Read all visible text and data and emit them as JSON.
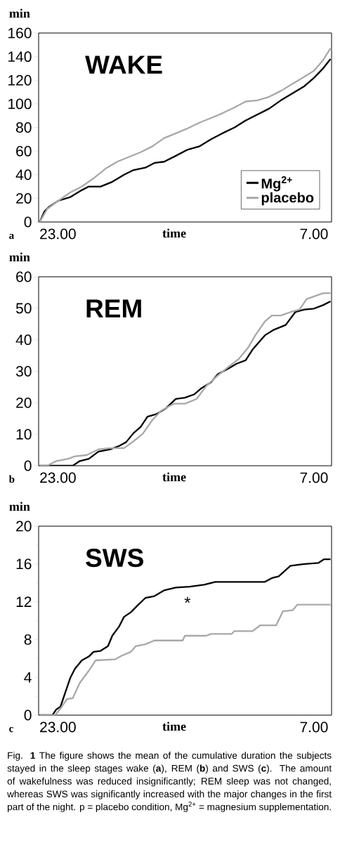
{
  "chart_data": [
    {
      "type": "line",
      "title": "WAKE",
      "xlabel": "time",
      "ylabel": "min",
      "xlim": [
        "2000-01-01T22:24",
        "2000-01-02T07:33"
      ],
      "xticks": [
        {
          "value": "2000-01-01T23:00",
          "label": "23.00"
        },
        {
          "value": "2000-01-02T07:00",
          "label": "7.00"
        }
      ],
      "ylim": [
        0,
        160
      ],
      "yticks": [
        0,
        20,
        40,
        60,
        80,
        100,
        120,
        140,
        160
      ],
      "legend": "bottom right",
      "grid": false,
      "annotations": [
        "a"
      ],
      "series": [
        {
          "name": "Mg$^{2+}$",
          "color": "#000000",
          "x": [
            "2000-01-01T22:26",
            "2000-01-01T22:35",
            "2000-01-01T22:44",
            "2000-01-01T23:01",
            "2000-01-01T23:23",
            "2000-01-01T23:45",
            "2000-01-01T23:58",
            "2000-01-02T00:20",
            "2000-01-02T00:42",
            "2000-01-02T01:04",
            "2000-01-02T01:22",
            "2000-01-02T01:44",
            "2000-01-02T02:01",
            "2000-01-02T02:19",
            "2000-01-02T02:41",
            "2000-01-02T03:02",
            "2000-01-02T03:25",
            "2000-01-02T03:47",
            "2000-01-02T04:08",
            "2000-01-02T04:31",
            "2000-01-02T04:52",
            "2000-01-02T05:14",
            "2000-01-02T05:36",
            "2000-01-02T05:58",
            "2000-01-02T06:20",
            "2000-01-02T06:42",
            "2000-01-02T07:00",
            "2000-01-02T07:17",
            "2000-01-02T07:31"
          ],
          "values": [
            0,
            9,
            13,
            18,
            21,
            27,
            30,
            30,
            34,
            40,
            44,
            46,
            50,
            51,
            56,
            61,
            64,
            70,
            75,
            80,
            86,
            91,
            96,
            103,
            109,
            115,
            122,
            130,
            138
          ]
        },
        {
          "name": "placebo",
          "color": "#a8a8a8",
          "x": [
            "2000-01-01T22:26",
            "2000-01-01T22:40",
            "2000-01-01T23:01",
            "2000-01-01T23:23",
            "2000-01-01T23:45",
            "2000-01-02T00:07",
            "2000-01-02T00:29",
            "2000-01-02T00:51",
            "2000-01-02T01:13",
            "2000-01-02T01:35",
            "2000-01-02T01:57",
            "2000-01-02T02:19",
            "2000-01-02T02:41",
            "2000-01-02T03:02",
            "2000-01-02T03:25",
            "2000-01-02T03:47",
            "2000-01-02T04:08",
            "2000-01-02T04:31",
            "2000-01-02T04:52",
            "2000-01-02T05:14",
            "2000-01-02T05:36",
            "2000-01-02T05:58",
            "2000-01-02T06:20",
            "2000-01-02T06:42",
            "2000-01-02T07:00",
            "2000-01-02T07:17",
            "2000-01-02T07:31"
          ],
          "values": [
            0,
            11,
            18,
            25,
            30,
            37,
            45,
            51,
            55,
            59,
            64,
            71,
            75,
            79,
            84,
            88,
            92,
            97,
            102,
            103,
            106,
            111,
            117,
            123,
            128,
            137,
            147
          ]
        }
      ]
    },
    {
      "type": "line",
      "title": "REM",
      "xlabel": "time",
      "ylabel": "min",
      "xlim": [
        "2000-01-01T22:24",
        "2000-01-02T07:33"
      ],
      "xticks": [
        {
          "value": "2000-01-01T23:00",
          "label": "23.00"
        },
        {
          "value": "2000-01-02T07:00",
          "label": "7.00"
        }
      ],
      "ylim": [
        0,
        60
      ],
      "yticks": [
        0,
        10,
        20,
        30,
        40,
        50,
        60
      ],
      "grid": false,
      "annotations": [
        "b"
      ],
      "series": [
        {
          "color": "#000000",
          "x": [
            "2000-01-01T22:26",
            "2000-01-01T23:28",
            "2000-01-01T23:41",
            "2000-01-01T23:58",
            "2000-01-02T00:16",
            "2000-01-02T00:38",
            "2000-01-02T00:55",
            "2000-01-02T01:08",
            "2000-01-02T01:22",
            "2000-01-02T01:35",
            "2000-01-02T01:48",
            "2000-01-02T02:05",
            "2000-01-02T02:23",
            "2000-01-02T02:41",
            "2000-01-02T02:58",
            "2000-01-02T03:16",
            "2000-01-02T03:29",
            "2000-01-02T03:47",
            "2000-01-02T04:00",
            "2000-01-02T04:17",
            "2000-01-02T04:35",
            "2000-01-02T04:52",
            "2000-01-02T05:05",
            "2000-01-02T05:28",
            "2000-01-02T05:45",
            "2000-01-02T06:07",
            "2000-01-02T06:25",
            "2000-01-02T06:42",
            "2000-01-02T07:00",
            "2000-01-02T07:17",
            "2000-01-02T07:31"
          ],
          "values": [
            0,
            0,
            1.5,
            2.2,
            4.5,
            5.2,
            6.3,
            7.5,
            10.4,
            12.3,
            15.6,
            16.4,
            18.3,
            21.2,
            21.6,
            22.7,
            24.6,
            26.5,
            29.1,
            30.6,
            32.4,
            33.5,
            36.9,
            41.4,
            43.2,
            44.7,
            48.8,
            49.6,
            49.9,
            51.0,
            52.2
          ]
        },
        {
          "color": "#a8a8a8",
          "x": [
            "2000-01-01T22:26",
            "2000-01-01T22:40",
            "2000-01-01T22:57",
            "2000-01-01T23:19",
            "2000-01-01T23:32",
            "2000-01-01T23:54",
            "2000-01-02T00:16",
            "2000-01-02T00:38",
            "2000-01-02T01:04",
            "2000-01-02T01:22",
            "2000-01-02T01:39",
            "2000-01-02T01:57",
            "2000-01-02T02:14",
            "2000-01-02T02:37",
            "2000-01-02T02:58",
            "2000-01-02T03:20",
            "2000-01-02T03:38",
            "2000-01-02T04:00",
            "2000-01-02T04:22",
            "2000-01-02T04:39",
            "2000-01-02T04:57",
            "2000-01-02T05:10",
            "2000-01-02T05:28",
            "2000-01-02T05:41",
            "2000-01-02T05:58",
            "2000-01-02T06:16",
            "2000-01-02T06:33",
            "2000-01-02T06:46",
            "2000-01-02T07:04",
            "2000-01-02T07:17",
            "2000-01-02T07:31"
          ],
          "values": [
            0,
            0,
            1.5,
            2.2,
            3.0,
            3.4,
            5.2,
            5.6,
            5.6,
            7.8,
            10.1,
            14.5,
            17.5,
            19.7,
            19.7,
            21.2,
            25.3,
            28.7,
            31.7,
            33.9,
            37.6,
            41.4,
            45.8,
            47.7,
            47.7,
            48.8,
            49.6,
            52.9,
            54.0,
            54.8,
            54.8
          ]
        }
      ]
    },
    {
      "type": "line",
      "title": "SWS",
      "xlabel": "time",
      "ylabel": "min",
      "xlim": [
        "2000-01-01T22:24",
        "2000-01-02T07:33"
      ],
      "xticks": [
        {
          "value": "2000-01-01T23:00",
          "label": "23.00"
        },
        {
          "value": "2000-01-02T07:00",
          "label": "7.00"
        }
      ],
      "ylim": [
        0,
        20
      ],
      "yticks": [
        0,
        {
          "value": 2,
          "label": null
        },
        4,
        {
          "value": 6,
          "label": null
        },
        8,
        {
          "value": 10,
          "label": null
        },
        12,
        {
          "value": 14,
          "label": null
        },
        16,
        {
          "value": 18,
          "label": null
        },
        20
      ],
      "grid": false,
      "annotations": [
        "c",
        "*",
        "Fig. **1** The figure shows the mean of the cumulative duration the subjects stayed in the sleep stages wake (**a**), REM (**b**) and SWS (**c**). The amount of wakefulness was reduced insignificantly; REM sleep was not changed, whereas SWS was significantly increased with the major changes in the first part of the night. p = placebo condition, Mg$^{2+}$ = magnesium supplementation."
      ],
      "series": [
        {
          "color": "#000000",
          "x": [
            "2000-01-01T22:26",
            "2000-01-01T22:50",
            "2000-01-01T22:57",
            "2000-01-01T23:05",
            "2000-01-01T23:14",
            "2000-01-01T23:23",
            "2000-01-01T23:32",
            "2000-01-01T23:45",
            "2000-01-01T23:58",
            "2000-01-02T00:07",
            "2000-01-02T00:20",
            "2000-01-02T00:34",
            "2000-01-02T00:42",
            "2000-01-02T00:55",
            "2000-01-02T01:04",
            "2000-01-02T01:17",
            "2000-01-02T01:31",
            "2000-01-02T01:44",
            "2000-01-02T02:01",
            "2000-01-02T02:19",
            "2000-01-02T02:41",
            "2000-01-02T03:07",
            "2000-01-02T03:34",
            "2000-01-02T03:55",
            "2000-01-02T04:31",
            "2000-01-02T05:28",
            "2000-01-02T05:41",
            "2000-01-02T05:54",
            "2000-01-02T06:16",
            "2000-01-02T06:42",
            "2000-01-02T07:08",
            "2000-01-02T07:19",
            "2000-01-02T07:31"
          ],
          "values": [
            0,
            0,
            0.6,
            0.9,
            2.4,
            3.9,
            4.9,
            5.8,
            6.2,
            6.7,
            6.8,
            7.3,
            8.4,
            9.4,
            10.4,
            10.9,
            11.7,
            12.4,
            12.6,
            13.2,
            13.5,
            13.6,
            13.8,
            14.1,
            14.1,
            14.1,
            14.5,
            14.7,
            15.8,
            16.0,
            16.1,
            16.5,
            16.5
          ]
        },
        {
          "color": "#a8a8a8",
          "x": [
            "2000-01-01T22:26",
            "2000-01-01T22:55",
            "2000-01-01T23:05",
            "2000-01-01T23:17",
            "2000-01-01T23:28",
            "2000-01-01T23:41",
            "2000-01-01T23:58",
            "2000-01-02T00:11",
            "2000-01-02T00:47",
            "2000-01-02T01:00",
            "2000-01-02T01:17",
            "2000-01-02T01:26",
            "2000-01-02T01:44",
            "2000-01-02T02:01",
            "2000-01-02T02:54",
            "2000-01-02T02:58",
            "2000-01-02T03:38",
            "2000-01-02T03:47",
            "2000-01-02T04:26",
            "2000-01-02T04:31",
            "2000-01-02T05:05",
            "2000-01-02T05:19",
            "2000-01-02T05:49",
            "2000-01-02T06:02",
            "2000-01-02T06:20",
            "2000-01-02T06:29",
            "2000-01-02T07:31"
          ],
          "values": [
            0,
            0,
            0.7,
            1.7,
            1.8,
            3.4,
            4.7,
            5.8,
            5.9,
            6.3,
            6.7,
            7.3,
            7.5,
            7.9,
            7.9,
            8.4,
            8.4,
            8.6,
            8.6,
            8.9,
            8.9,
            9.5,
            9.5,
            11.0,
            11.1,
            11.7,
            11.7
          ]
        }
      ]
    }
  ]
}
